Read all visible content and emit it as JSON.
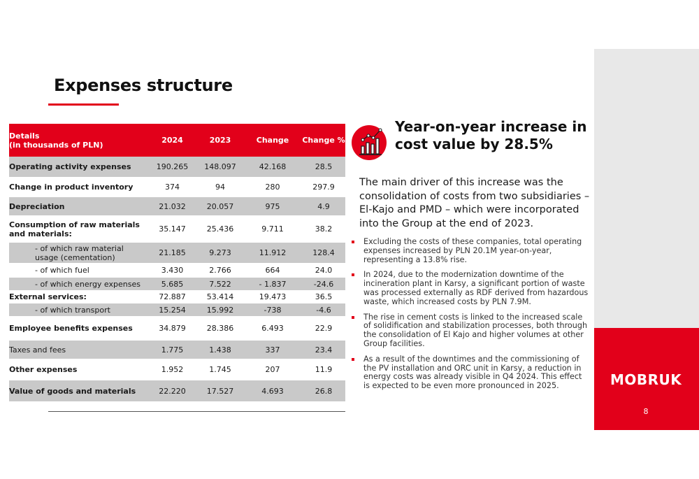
{
  "slide": {
    "title": "Expenses structure",
    "page_number": "8",
    "logo_text": "MOBRUK",
    "accent_color": "#e2001a"
  },
  "table": {
    "header": {
      "details_line1": "Details",
      "details_line2": "(in thousands of PLN)",
      "col_2024": "2024",
      "col_2023": "2023",
      "col_change": "Change",
      "col_change_pct": "Change %"
    },
    "rows": [
      {
        "label": "Operating activity expenses",
        "v2024": "190.265",
        "v2023": "148.097",
        "change": "42.168",
        "pct": "28.5"
      },
      {
        "label": "Change in product inventory",
        "v2024": "374",
        "v2023": "94",
        "change": "280",
        "pct": "297.9"
      },
      {
        "label": "Depreciation",
        "v2024": "21.032",
        "v2023": "20.057",
        "change": "975",
        "pct": "4.9"
      },
      {
        "label_line1": "Consumption of raw materials",
        "label_line2": "and materials:",
        "v2024": "35.147",
        "v2023": "25.436",
        "change": "9.711",
        "pct": "38.2"
      },
      {
        "label_line1": "- of which raw material",
        "label_line2": "usage (cementation)",
        "v2024": "21.185",
        "v2023": "9.273",
        "change": "11.912",
        "pct": "128.4"
      },
      {
        "label": "- of which fuel",
        "v2024": "3.430",
        "v2023": "2.766",
        "change": "664",
        "pct": "24.0"
      },
      {
        "label": "- of which energy expenses",
        "v2024": "5.685",
        "v2023": "7.522",
        "change": "- 1.837",
        "pct": "-24.6"
      },
      {
        "label": "External services:",
        "v2024": "72.887",
        "v2023": "53.414",
        "change": "19.473",
        "pct": "36.5"
      },
      {
        "label": "- of which transport",
        "v2024": "15.254",
        "v2023": "15.992",
        "change": "-738",
        "pct": "-4.6"
      },
      {
        "label": "Employee benefits expenses",
        "v2024": "34.879",
        "v2023": "28.386",
        "change": "6.493",
        "pct": "22.9"
      },
      {
        "label": "Taxes and fees",
        "v2024": "1.775",
        "v2023": "1.438",
        "change": "337",
        "pct": "23.4"
      },
      {
        "label": "Other expenses",
        "v2024": "1.952",
        "v2023": "1.745",
        "change": "207",
        "pct": "11.9"
      },
      {
        "label": "Value of goods and materials",
        "v2024": "22.220",
        "v2023": "17.527",
        "change": "4.693",
        "pct": "26.8"
      }
    ]
  },
  "summary": {
    "kpi_icon": "bar-chart-growth-icon",
    "kpi_title": "Year-on-year increase in cost value by 28.5%",
    "lead": "The main driver of this increase was the consolidation of costs from two subsidiaries – El-Kajo and PMD – which were incorporated into the Group at the end of 2023.",
    "bullets": [
      "Excluding the costs of these companies, total operating expenses increased by PLN 20.1M year-on-year, representing a 13.8% rise.",
      "In 2024, due to the modernization downtime of the incineration plant in Karsy, a significant portion of waste was processed externally as RDF derived from hazardous waste, which increased costs by PLN 7.9M.",
      "The rise in cement costs is linked to the increased scale of solidification and stabilization processes, both through the consolidation of El Kajo and higher volumes at other Group facilities.",
      "As a result of the downtimes and the commissioning of the PV installation and ORC unit in Karsy, a reduction in energy costs was already visible in Q4 2024. This effect is expected to be even more pronounced in 2025."
    ]
  }
}
